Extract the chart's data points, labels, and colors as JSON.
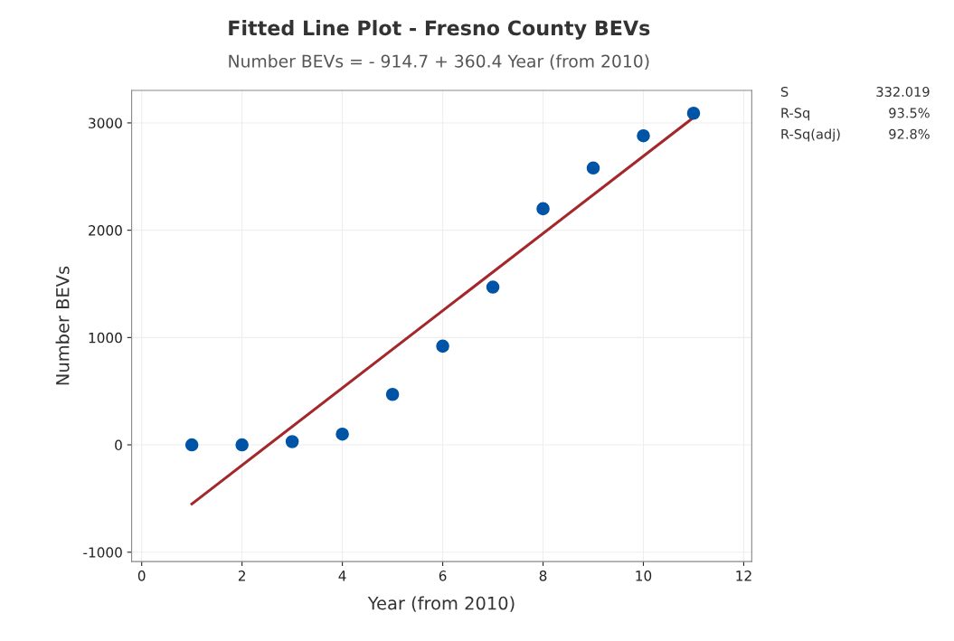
{
  "chart_data": {
    "type": "scatter",
    "title": "Fitted Line Plot - Fresno County BEVs",
    "subtitle": "Number BEVs = - 914.7 + 360.4 Year (from 2010)",
    "xlabel": "Year (from 2010)",
    "ylabel": "Number BEVs",
    "x": [
      1,
      2,
      3,
      4,
      5,
      6,
      7,
      8,
      9,
      10,
      11
    ],
    "series": [
      {
        "color": "#0054a6",
        "marker": "circle",
        "values": [
          0,
          0,
          30,
          100,
          470,
          920,
          1470,
          2200,
          2580,
          2880,
          3090
        ]
      },
      {
        "type": "line",
        "color": "#a4282b",
        "marker": "none",
        "line_style": "solid",
        "x": [
          1,
          11
        ],
        "values": [
          -550,
          3050
        ]
      }
    ],
    "xlim": [
      -0.2,
      12.16
    ],
    "xticks": [
      0,
      2,
      4,
      6,
      8,
      10,
      12
    ],
    "ylim": [
      -1087,
      3303
    ],
    "yticks": [
      -1000,
      0,
      1000,
      2000,
      3000
    ],
    "grid": true,
    "legend": false,
    "annotations": [
      "S",
      "332.019",
      "R-Sq",
      "93.5%",
      "R-Sq(adj)",
      "92.8%"
    ]
  }
}
